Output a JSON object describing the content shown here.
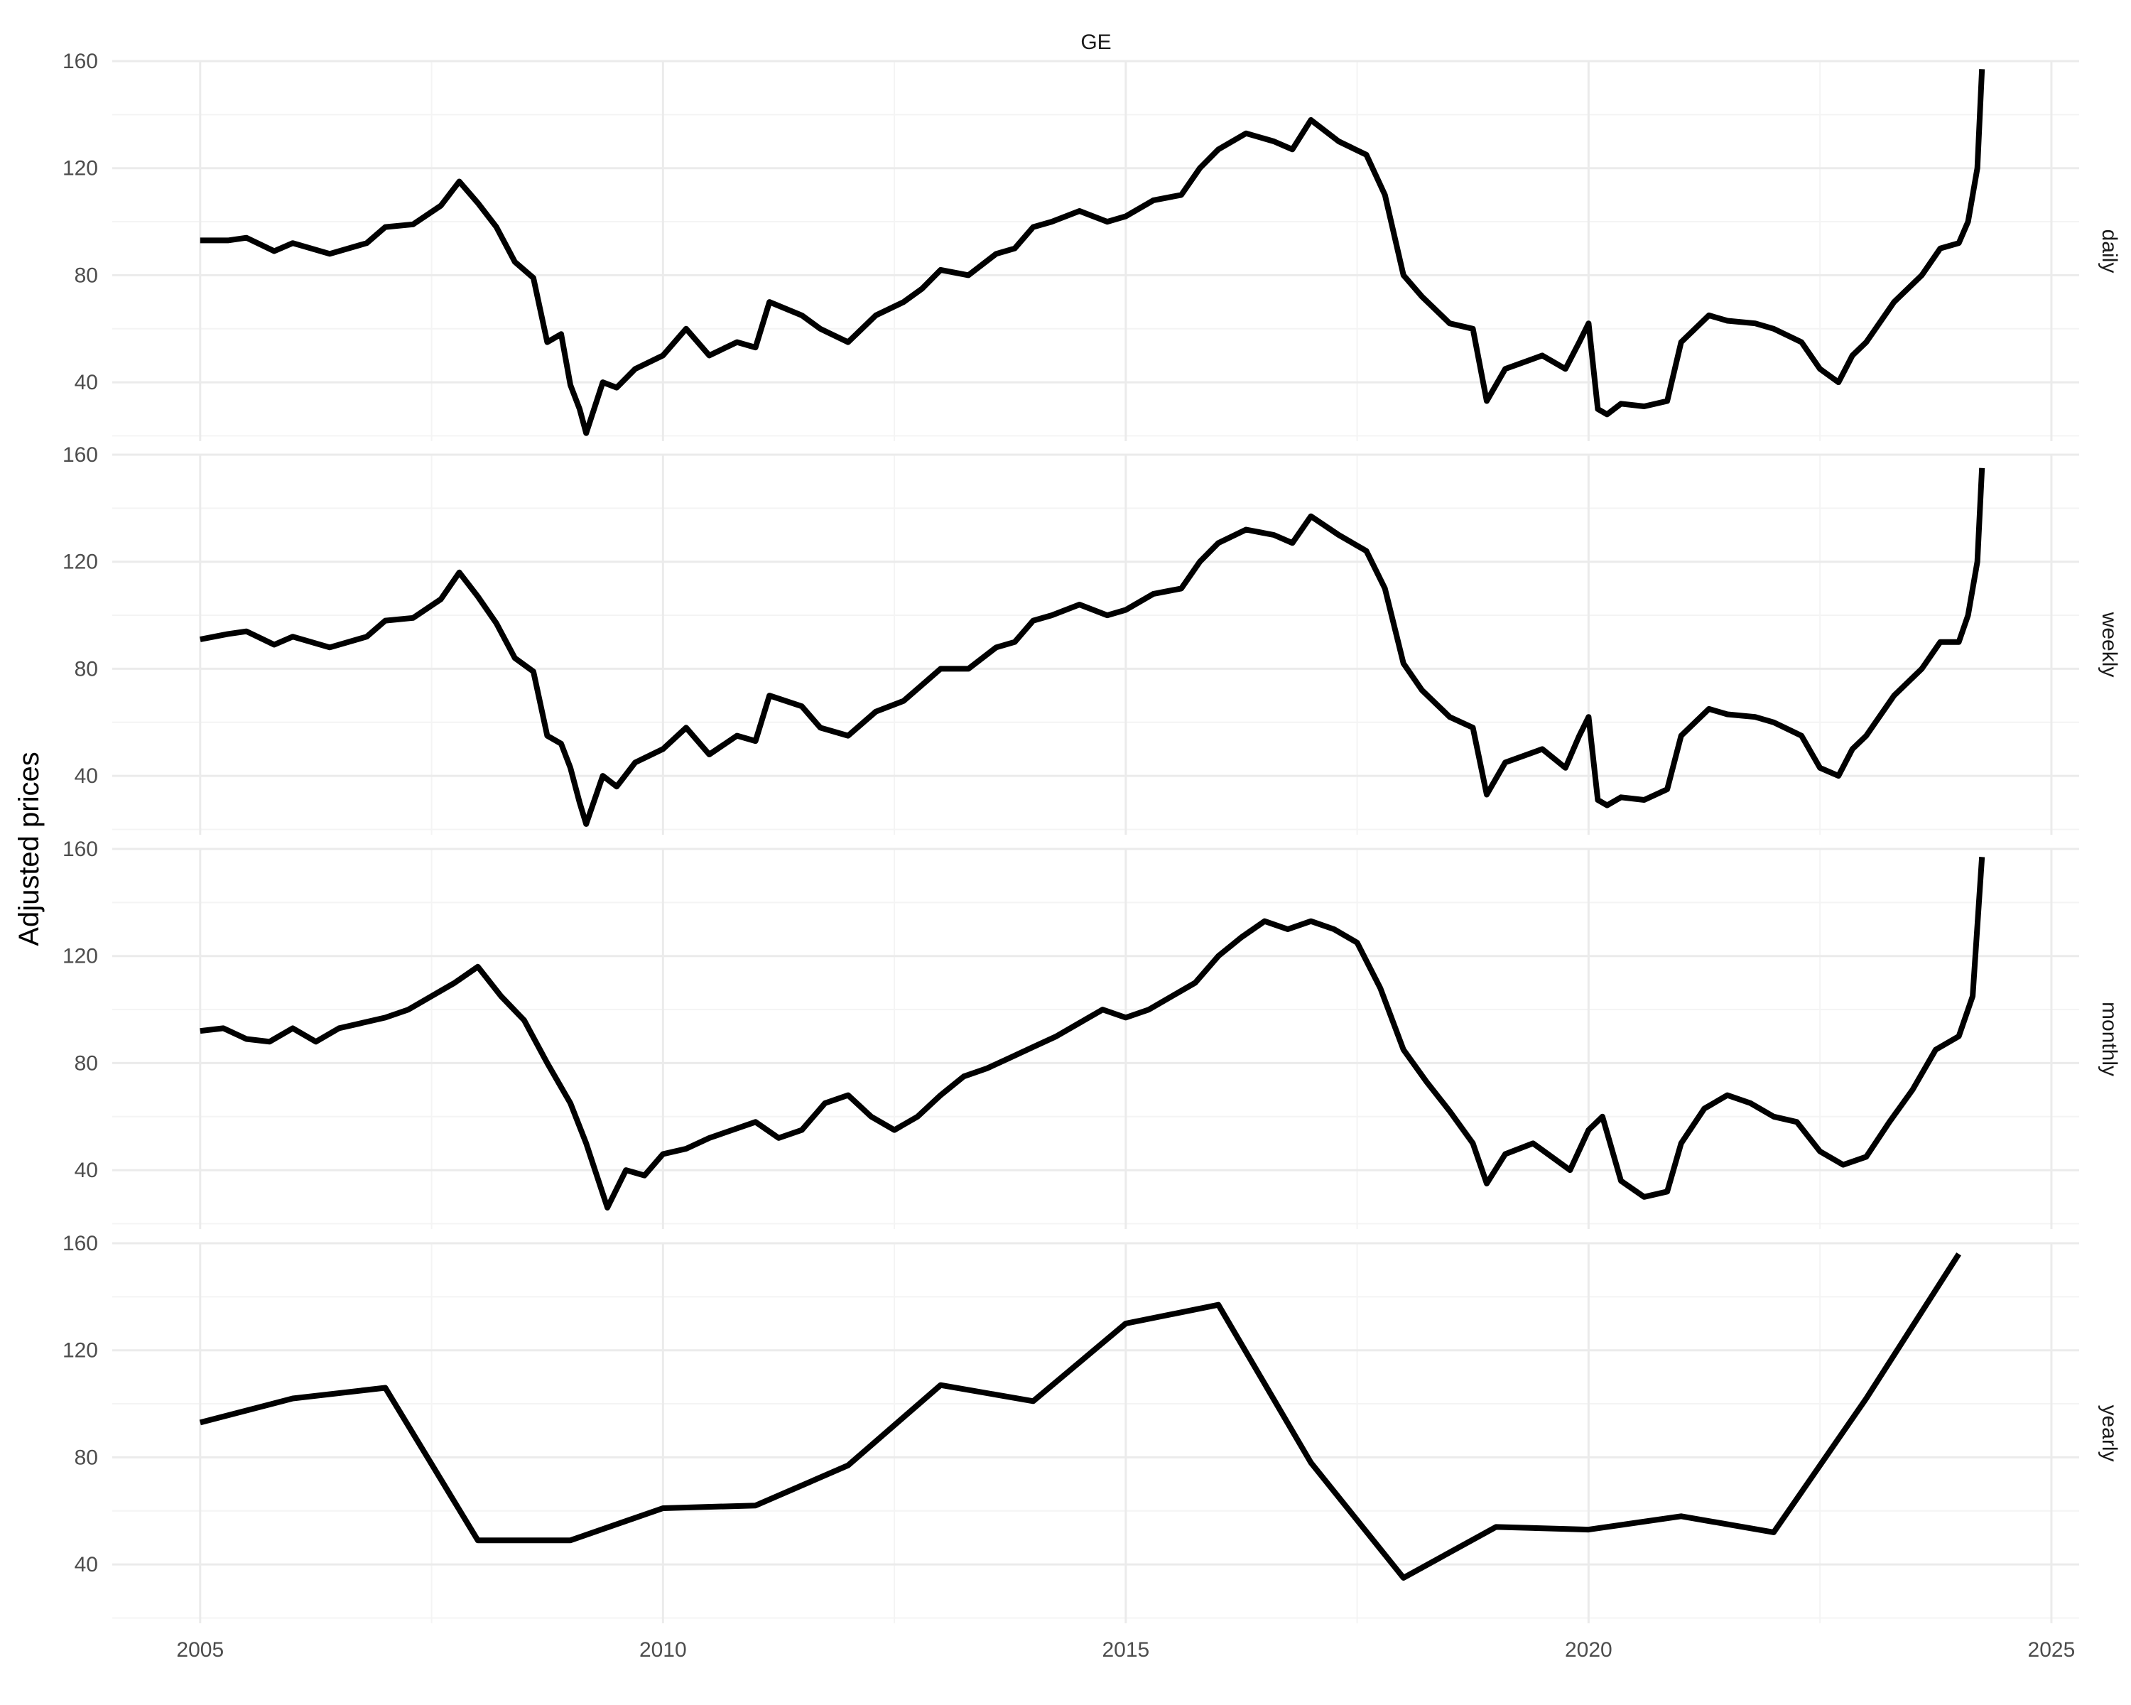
{
  "chart_data": {
    "type": "line",
    "title": "GE",
    "ylabel": "Adjusted prices",
    "xlabel": "",
    "xlim": [
      2004.05,
      2025.3
    ],
    "ylim": [
      18,
      160
    ],
    "x_ticks": [
      2005,
      2010,
      2015,
      2020,
      2025
    ],
    "y_ticks": [
      40,
      80,
      120,
      160
    ],
    "grid": true,
    "line_color": "#000000",
    "panels": [
      {
        "name": "daily",
        "series": [
          {
            "name": "daily",
            "x": [
              2005.0,
              2005.3,
              2005.5,
              2005.8,
              2006.0,
              2006.4,
              2006.8,
              2007.0,
              2007.3,
              2007.6,
              2007.8,
              2008.0,
              2008.2,
              2008.4,
              2008.6,
              2008.75,
              2008.9,
              2009.0,
              2009.1,
              2009.17,
              2009.35,
              2009.5,
              2009.7,
              2010.0,
              2010.25,
              2010.5,
              2010.8,
              2011.0,
              2011.15,
              2011.5,
              2011.7,
              2012.0,
              2012.3,
              2012.6,
              2012.8,
              2013.0,
              2013.3,
              2013.6,
              2013.8,
              2014.0,
              2014.2,
              2014.5,
              2014.8,
              2015.0,
              2015.3,
              2015.6,
              2015.8,
              2016.0,
              2016.3,
              2016.6,
              2016.8,
              2017.0,
              2017.3,
              2017.6,
              2017.8,
              2018.0,
              2018.2,
              2018.5,
              2018.75,
              2018.9,
              2019.1,
              2019.5,
              2019.75,
              2019.9,
              2020.0,
              2020.1,
              2020.2,
              2020.35,
              2020.6,
              2020.85,
              2021.0,
              2021.3,
              2021.5,
              2021.8,
              2022.0,
              2022.3,
              2022.5,
              2022.7,
              2022.85,
              2023.0,
              2023.3,
              2023.6,
              2023.8,
              2024.0,
              2024.1,
              2024.2,
              2024.25
            ],
            "y": [
              93,
              93,
              94,
              89,
              92,
              88,
              92,
              98,
              99,
              106,
              115,
              107,
              98,
              85,
              79,
              55,
              58,
              39,
              30,
              21,
              40,
              38,
              45,
              50,
              60,
              50,
              55,
              53,
              70,
              65,
              60,
              55,
              65,
              70,
              75,
              82,
              80,
              88,
              90,
              98,
              100,
              104,
              100,
              102,
              108,
              110,
              120,
              127,
              133,
              130,
              127,
              138,
              130,
              125,
              110,
              80,
              72,
              62,
              60,
              33,
              45,
              50,
              45,
              55,
              62,
              30,
              28,
              32,
              31,
              33,
              55,
              65,
              63,
              62,
              60,
              55,
              45,
              40,
              50,
              55,
              70,
              80,
              90,
              92,
              100,
              120,
              157
            ]
          }
        ]
      },
      {
        "name": "weekly",
        "series": [
          {
            "name": "weekly",
            "x": [
              2005.0,
              2005.3,
              2005.5,
              2005.8,
              2006.0,
              2006.4,
              2006.8,
              2007.0,
              2007.3,
              2007.6,
              2007.8,
              2008.0,
              2008.2,
              2008.4,
              2008.6,
              2008.75,
              2008.9,
              2009.0,
              2009.1,
              2009.17,
              2009.35,
              2009.5,
              2009.7,
              2010.0,
              2010.25,
              2010.5,
              2010.8,
              2011.0,
              2011.15,
              2011.5,
              2011.7,
              2012.0,
              2012.3,
              2012.6,
              2012.8,
              2013.0,
              2013.3,
              2013.6,
              2013.8,
              2014.0,
              2014.2,
              2014.5,
              2014.8,
              2015.0,
              2015.3,
              2015.6,
              2015.8,
              2016.0,
              2016.3,
              2016.6,
              2016.8,
              2017.0,
              2017.3,
              2017.6,
              2017.8,
              2018.0,
              2018.2,
              2018.5,
              2018.75,
              2018.9,
              2019.1,
              2019.5,
              2019.75,
              2019.9,
              2020.0,
              2020.1,
              2020.2,
              2020.35,
              2020.6,
              2020.85,
              2021.0,
              2021.3,
              2021.5,
              2021.8,
              2022.0,
              2022.3,
              2022.5,
              2022.7,
              2022.85,
              2023.0,
              2023.3,
              2023.6,
              2023.8,
              2024.0,
              2024.1,
              2024.2,
              2024.25
            ],
            "y": [
              91,
              93,
              94,
              89,
              92,
              88,
              92,
              98,
              99,
              106,
              116,
              107,
              97,
              84,
              79,
              55,
              52,
              43,
              30,
              22,
              40,
              36,
              45,
              50,
              58,
              48,
              55,
              53,
              70,
              66,
              58,
              55,
              64,
              68,
              74,
              80,
              80,
              88,
              90,
              98,
              100,
              104,
              100,
              102,
              108,
              110,
              120,
              127,
              132,
              130,
              127,
              137,
              130,
              124,
              110,
              82,
              72,
              62,
              58,
              33,
              45,
              50,
              43,
              55,
              62,
              31,
              29,
              32,
              31,
              35,
              55,
              65,
              63,
              62,
              60,
              55,
              43,
              40,
              50,
              55,
              70,
              80,
              90,
              90,
              100,
              120,
              155
            ]
          }
        ]
      },
      {
        "name": "monthly",
        "series": [
          {
            "name": "monthly",
            "x": [
              2005.0,
              2005.25,
              2005.5,
              2005.75,
              2006.0,
              2006.25,
              2006.5,
              2006.75,
              2007.0,
              2007.25,
              2007.5,
              2007.75,
              2008.0,
              2008.25,
              2008.5,
              2008.75,
              2009.0,
              2009.17,
              2009.4,
              2009.6,
              2009.8,
              2010.0,
              2010.25,
              2010.5,
              2010.75,
              2011.0,
              2011.25,
              2011.5,
              2011.75,
              2012.0,
              2012.25,
              2012.5,
              2012.75,
              2013.0,
              2013.25,
              2013.5,
              2013.75,
              2014.0,
              2014.25,
              2014.5,
              2014.75,
              2015.0,
              2015.25,
              2015.5,
              2015.75,
              2016.0,
              2016.25,
              2016.5,
              2016.75,
              2017.0,
              2017.25,
              2017.5,
              2017.75,
              2018.0,
              2018.25,
              2018.5,
              2018.75,
              2018.9,
              2019.1,
              2019.4,
              2019.6,
              2019.8,
              2020.0,
              2020.15,
              2020.35,
              2020.6,
              2020.85,
              2021.0,
              2021.25,
              2021.5,
              2021.75,
              2022.0,
              2022.25,
              2022.5,
              2022.75,
              2023.0,
              2023.25,
              2023.5,
              2023.75,
              2024.0,
              2024.15,
              2024.25
            ],
            "y": [
              92,
              93,
              89,
              88,
              93,
              88,
              93,
              95,
              97,
              100,
              105,
              110,
              116,
              105,
              96,
              80,
              65,
              50,
              26,
              40,
              38,
              46,
              48,
              52,
              55,
              58,
              52,
              55,
              65,
              68,
              60,
              55,
              60,
              68,
              75,
              78,
              82,
              86,
              90,
              95,
              100,
              97,
              100,
              105,
              110,
              120,
              127,
              133,
              130,
              133,
              130,
              125,
              108,
              85,
              73,
              62,
              50,
              35,
              46,
              50,
              45,
              40,
              55,
              60,
              36,
              30,
              32,
              50,
              63,
              68,
              65,
              60,
              58,
              47,
              42,
              45,
              58,
              70,
              85,
              90,
              105,
              157
            ]
          }
        ]
      },
      {
        "name": "yearly",
        "series": [
          {
            "name": "yearly",
            "x": [
              2005,
              2006,
              2007,
              2008,
              2009,
              2010,
              2011,
              2012,
              2013,
              2014,
              2015,
              2016,
              2017,
              2018,
              2019,
              2020,
              2021,
              2022,
              2023,
              2024
            ],
            "y": [
              93,
              102,
              106,
              49,
              49,
              61,
              62,
              77,
              107,
              101,
              130,
              137,
              78,
              35,
              54,
              53,
              58,
              52,
              102,
              156
            ]
          }
        ]
      }
    ]
  }
}
